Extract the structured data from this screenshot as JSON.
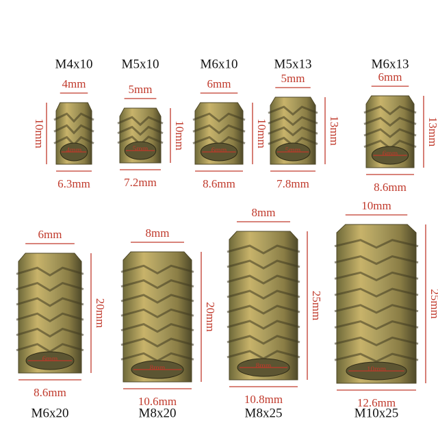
{
  "items": [
    {
      "name": "M4x10",
      "top": "4mm",
      "height": "10mm",
      "bottom": "6.3mm",
      "hex": "4mm"
    },
    {
      "name": "M5x10",
      "top": "5mm",
      "height": "10mm",
      "bottom": "7.2mm",
      "hex": "5mm"
    },
    {
      "name": "M6x10",
      "top": "6mm",
      "height": "10mm",
      "bottom": "8.6mm",
      "hex": "6mm"
    },
    {
      "name": "M5x13",
      "top": "5mm",
      "height": "13mm",
      "bottom": "7.8mm",
      "hex": "5mm"
    },
    {
      "name": "M6x13",
      "top": "6mm",
      "height": "13mm",
      "bottom": "8.6mm",
      "hex": "6mm"
    },
    {
      "name": "M6x20",
      "top": "6mm",
      "height": "20mm",
      "bottom": "8.6mm",
      "hex": "6mm"
    },
    {
      "name": "M8x20",
      "top": "8mm",
      "height": "20mm",
      "bottom": "10.6mm",
      "hex": "8mm"
    },
    {
      "name": "M8x25",
      "top": "8mm",
      "height": "25mm",
      "bottom": "10.8mm",
      "hex": "8mm"
    },
    {
      "name": "M10x25",
      "top": "10mm",
      "height": "25mm",
      "bottom": "12.6mm",
      "hex": "10mm"
    }
  ]
}
